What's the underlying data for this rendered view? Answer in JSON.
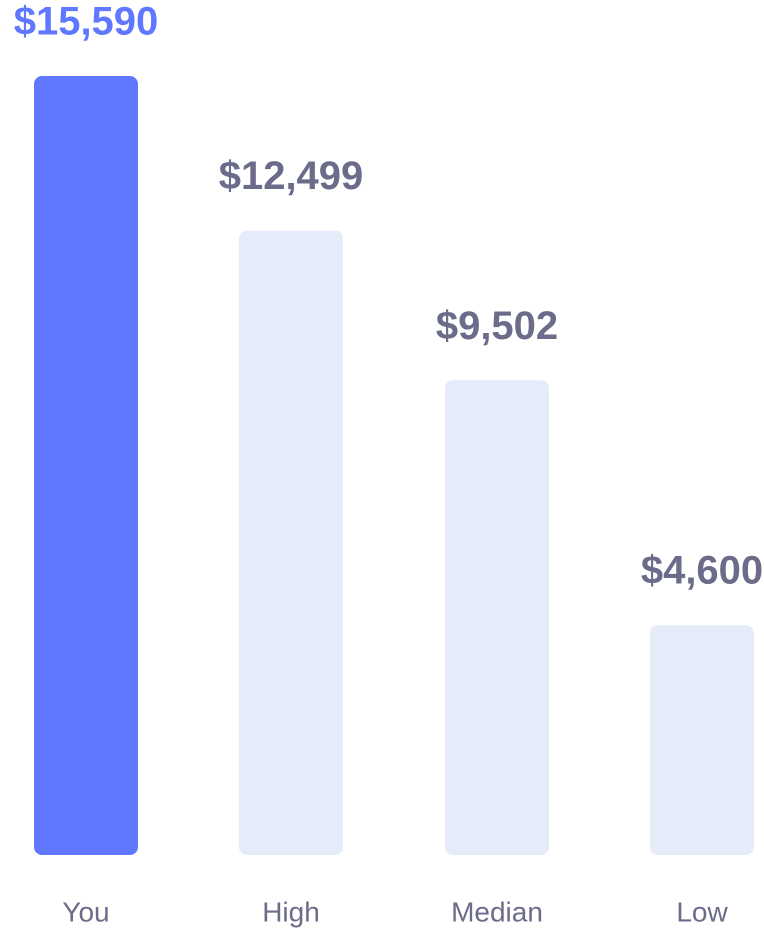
{
  "chart_data": {
    "type": "bar",
    "categories": [
      "You",
      "High",
      "Median",
      "Low"
    ],
    "values": [
      15590,
      12499,
      9502,
      4600
    ],
    "value_labels": [
      "$15,590",
      "$12,499",
      "$9,502",
      "$4,600"
    ],
    "colors": [
      "#6078ff",
      "#e6ebfa",
      "#e6ebfa",
      "#e6ebfa"
    ],
    "label_colors": [
      "#6078ff",
      "#6b6b8a",
      "#6b6b8a",
      "#6b6b8a"
    ]
  }
}
